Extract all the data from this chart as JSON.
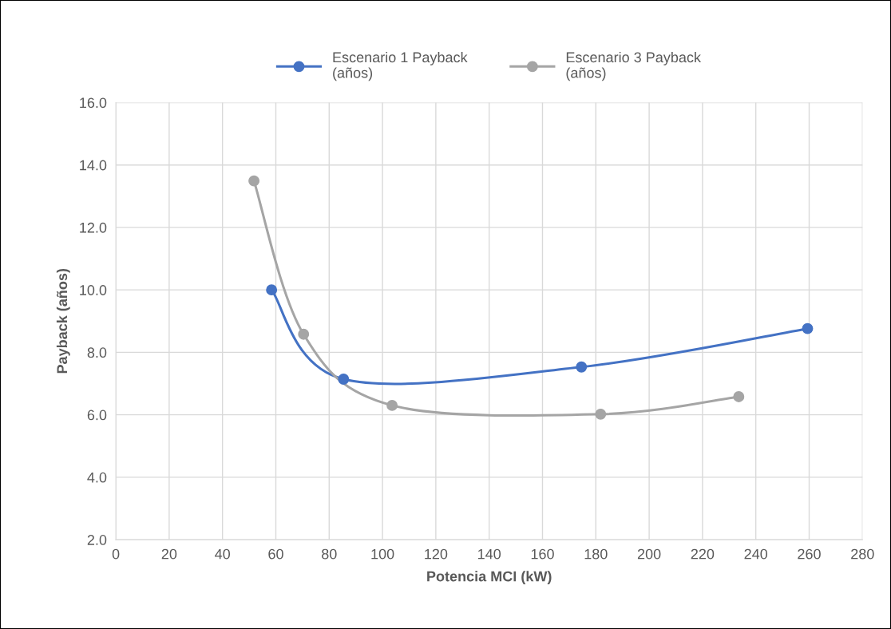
{
  "chart_data": {
    "type": "line",
    "xlabel": "Potencia MCI (kW)",
    "ylabel": "Payback (años)",
    "series": [
      {
        "name": "Escenario 1 Payback\n(años)",
        "color": "#4472c4",
        "x": [
          58.4,
          85.4,
          174.6,
          259.4
        ],
        "values": [
          10.0,
          7.14,
          7.53,
          8.76
        ]
      },
      {
        "name": "Escenario 3 Payback\n(años)",
        "color": "#a5a5a5",
        "x": [
          51.8,
          70.4,
          103.6,
          181.8,
          233.6
        ],
        "values": [
          13.49,
          8.58,
          6.3,
          6.02,
          6.58
        ]
      }
    ],
    "xlim": [
      0,
      280
    ],
    "xticks": [
      0,
      20,
      40,
      60,
      80,
      100,
      120,
      140,
      160,
      180,
      200,
      220,
      240,
      260,
      280
    ],
    "ylim": [
      2,
      16
    ],
    "yticks": [
      {
        "value": 2,
        "label": "2.0"
      },
      {
        "value": 4,
        "label": "4.0"
      },
      {
        "value": 6,
        "label": "6.0"
      },
      {
        "value": 8,
        "label": "8.0"
      },
      {
        "value": 10,
        "label": "10.0"
      },
      {
        "value": 12,
        "label": "12.0"
      },
      {
        "value": 14,
        "label": "14.0"
      },
      {
        "value": 16,
        "label": "16.0"
      }
    ],
    "grid": true,
    "legend": "top",
    "marker": "circle",
    "line_style": "solid"
  }
}
